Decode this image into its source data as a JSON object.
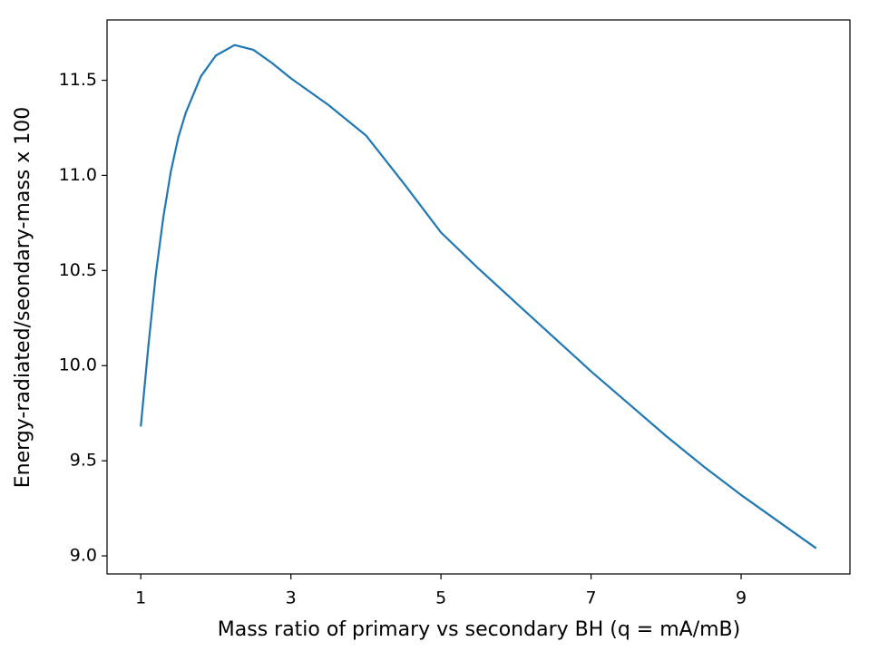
{
  "chart_data": {
    "type": "line",
    "xlabel": "Mass ratio of primary vs secondary BH (q = mA/mB)",
    "ylabel": "Energy-radiated/seondary-mass x 100",
    "x": [
      1,
      1.1,
      1.2,
      1.3,
      1.4,
      1.5,
      1.6,
      1.8,
      2.0,
      2.25,
      2.5,
      2.75,
      3,
      3.5,
      4,
      4.5,
      5,
      5.5,
      6,
      6.5,
      7,
      7.5,
      8,
      8.5,
      9,
      9.5,
      10
    ],
    "series": [
      {
        "color": "#1f77b4",
        "values": [
          9.68,
          10.1,
          10.48,
          10.78,
          11.02,
          11.2,
          11.33,
          11.52,
          11.63,
          11.685,
          11.66,
          11.59,
          11.51,
          11.37,
          11.21,
          10.96,
          10.7,
          10.51,
          10.33,
          10.15,
          9.97,
          9.8,
          9.63,
          9.47,
          9.32,
          9.18,
          9.04
        ]
      }
    ],
    "xlim": [
      0.55,
      10.45
    ],
    "ylim": [
      8.905,
      11.817
    ],
    "xticks": [
      1,
      3,
      5,
      7,
      9
    ],
    "yticks": [
      {
        "value": 9,
        "label": "9.0"
      },
      9.5,
      {
        "value": 10,
        "label": "10.0"
      },
      10.5,
      {
        "value": 11,
        "label": "11.0"
      },
      11.5
    ]
  }
}
